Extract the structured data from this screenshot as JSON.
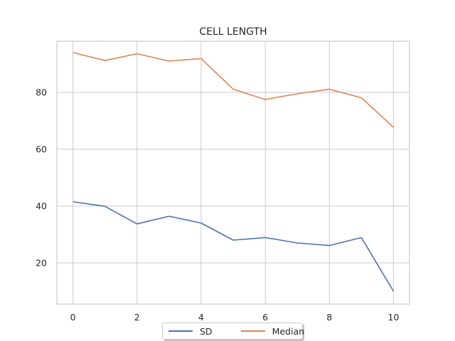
{
  "chart_data": {
    "type": "line",
    "title": "CELL LENGTH",
    "xlabel": "",
    "ylabel": "",
    "x": [
      0,
      1,
      2,
      3,
      4,
      5,
      6,
      7,
      8,
      9,
      10
    ],
    "xlim": [
      -0.5,
      10.5
    ],
    "ylim": [
      5.5,
      98
    ],
    "xticks": [
      "0",
      "2",
      "4",
      "6",
      "8",
      "10"
    ],
    "yticks": [
      "20",
      "40",
      "60",
      "80"
    ],
    "grid": true,
    "legend_position": "bottom-center",
    "series": [
      {
        "name": "SD",
        "color": "#4c72b0",
        "values": [
          41.5,
          39.9,
          33.7,
          36.4,
          34.0,
          28.0,
          28.9,
          27.0,
          26.1,
          28.9,
          10.0
        ]
      },
      {
        "name": "Median",
        "color": "#dd8452",
        "values": [
          94.0,
          91.2,
          93.6,
          91.0,
          91.9,
          81.1,
          77.5,
          79.5,
          81.1,
          78.1,
          67.7
        ]
      }
    ]
  }
}
